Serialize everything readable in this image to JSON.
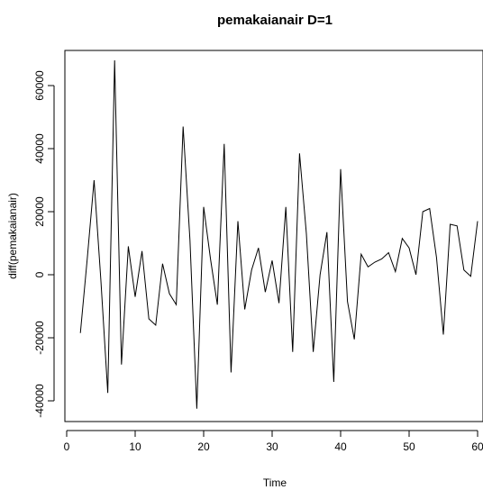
{
  "chart_data": {
    "type": "line",
    "title": "pemakaianair D=1",
    "xlabel": "Time",
    "ylabel": "diff(pemakaianair)",
    "xlim": [
      0,
      60
    ],
    "ylim": [
      -46000,
      70000
    ],
    "xticks": [
      0,
      10,
      20,
      30,
      40,
      50,
      60
    ],
    "yticks": [
      -40000,
      -20000,
      0,
      20000,
      40000,
      60000
    ],
    "grid": false,
    "line_color": "#000000",
    "x": [
      2,
      3,
      4,
      5,
      6,
      7,
      8,
      9,
      10,
      11,
      12,
      13,
      14,
      15,
      16,
      17,
      18,
      19,
      20,
      21,
      22,
      23,
      24,
      25,
      26,
      27,
      28,
      29,
      30,
      31,
      32,
      33,
      34,
      35,
      36,
      37,
      38,
      39,
      40,
      41,
      42,
      43,
      44,
      45,
      46,
      47,
      48,
      49,
      50,
      51,
      52,
      53,
      54,
      55,
      56,
      57,
      58,
      59,
      60
    ],
    "series": [
      {
        "values": [
          -18500,
          5000,
          30000,
          -2000,
          -37500,
          68000,
          -28500,
          9000,
          -7000,
          7500,
          -14000,
          -16000,
          3500,
          -6000,
          -9500,
          47000,
          11000,
          -42500,
          21500,
          5000,
          -9500,
          41500,
          -31000,
          17000,
          -11000,
          1500,
          8500,
          -5500,
          4500,
          -9000,
          21500,
          -24500,
          38500,
          13000,
          -24500,
          0,
          13500,
          -34000,
          33500,
          -8500,
          -20500,
          6500,
          2500,
          4000,
          5000,
          7000,
          1000,
          11500,
          8500,
          0,
          20000,
          21000,
          5500,
          -19000,
          16000,
          15500,
          1500,
          -500,
          17000
        ]
      }
    ]
  }
}
